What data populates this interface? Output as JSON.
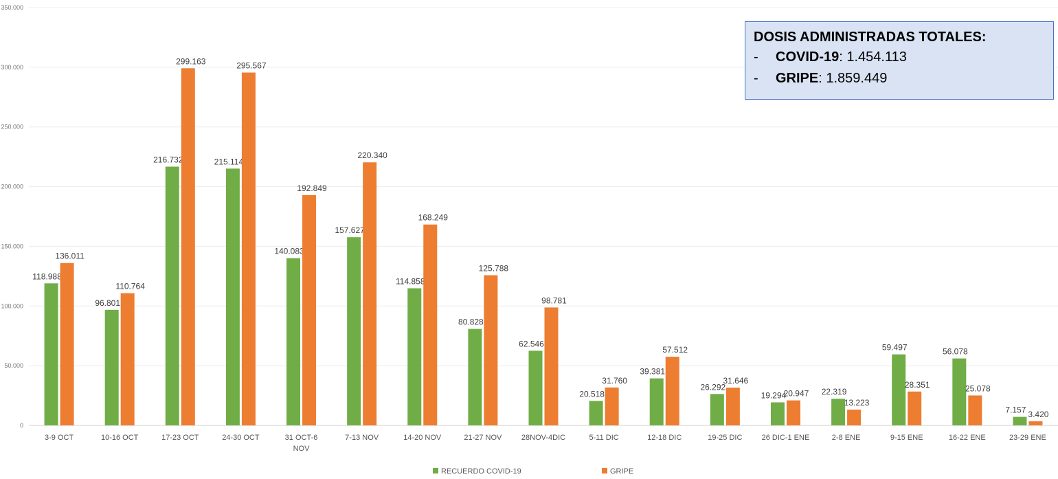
{
  "chart_data": {
    "type": "bar",
    "categories": [
      "3-9 OCT",
      "10-16 OCT",
      "17-23 OCT",
      "24-30 OCT",
      "31 OCT-6 NOV",
      "7-13 NOV",
      "14-20 NOV",
      "21-27 NOV",
      "28NOV-4DIC",
      "5-11 DIC",
      "12-18 DIC",
      "19-25 DIC",
      "26 DIC-1 ENE",
      "2-8 ENE",
      "9-15 ENE",
      "16-22 ENE",
      "23-29 ENE"
    ],
    "category_lines": [
      [
        "3-9 OCT"
      ],
      [
        "10-16 OCT"
      ],
      [
        "17-23 OCT"
      ],
      [
        "24-30 OCT"
      ],
      [
        "31 OCT-6",
        "NOV"
      ],
      [
        "7-13 NOV"
      ],
      [
        "14-20 NOV"
      ],
      [
        "21-27 NOV"
      ],
      [
        "28NOV-4DIC"
      ],
      [
        "5-11 DIC"
      ],
      [
        "12-18 DIC"
      ],
      [
        "19-25 DIC"
      ],
      [
        "26 DIC-1 ENE"
      ],
      [
        "2-8 ENE"
      ],
      [
        "9-15 ENE"
      ],
      [
        "16-22 ENE"
      ],
      [
        "23-29 ENE"
      ]
    ],
    "series": [
      {
        "name": "RECUERDO COVID-19",
        "color": "#70ad47",
        "values": [
          118988,
          96801,
          216732,
          215114,
          140083,
          157627,
          114858,
          80828,
          62546,
          20518,
          39381,
          26292,
          19294,
          22319,
          59497,
          56078,
          7157
        ],
        "labels": [
          "118.988",
          "96.801",
          "216.732",
          "215.114",
          "140.083",
          "157.627",
          "114.858",
          "80.828",
          "62.546",
          "20.518",
          "39.381",
          "26.292",
          "19.294",
          "22.319",
          "59.497",
          "56.078",
          "7.157"
        ]
      },
      {
        "name": "GRIPE",
        "color": "#ed7d31",
        "values": [
          136011,
          110764,
          299163,
          295567,
          192849,
          220340,
          168249,
          125788,
          98781,
          31760,
          57512,
          31646,
          20947,
          13223,
          28351,
          25078,
          3420
        ],
        "labels": [
          "136.011",
          "110.764",
          "299.163",
          "295.567",
          "192.849",
          "220.340",
          "168.249",
          "125.788",
          "98.781",
          "31.760",
          "57.512",
          "31.646",
          "20.947",
          "13.223",
          "28.351",
          "25.078",
          "3.420"
        ]
      }
    ],
    "ylim": [
      0,
      350000
    ],
    "yticks": [
      0,
      50000,
      100000,
      150000,
      200000,
      250000,
      300000,
      350000
    ],
    "ytick_labels": [
      "0",
      "50.000",
      "100.000",
      "150.000",
      "200.000",
      "250.000",
      "300.000",
      "350.000"
    ],
    "grid": true,
    "legend_position": "bottom",
    "title": "",
    "xlabel": "",
    "ylabel": ""
  },
  "info_box": {
    "title": "DOSIS ADMINISTRADAS TOTALES:",
    "rows": [
      {
        "dash": "-",
        "label": "COVID-19",
        "value": ": 1.454.113"
      },
      {
        "dash": "-",
        "label": "GRIPE",
        "value": ": 1.859.449"
      }
    ]
  }
}
